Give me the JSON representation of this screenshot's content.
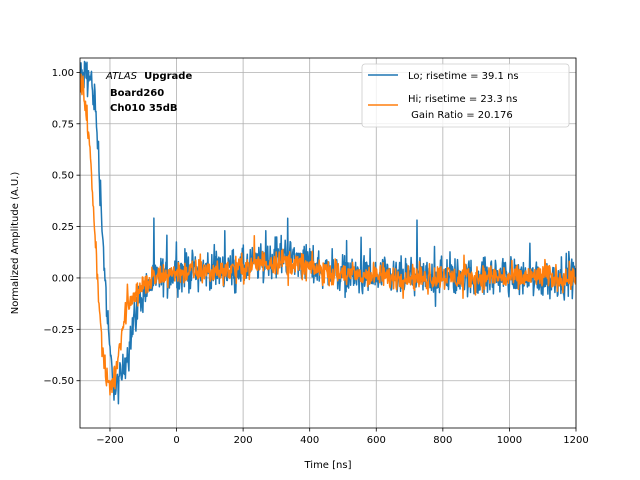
{
  "chart_data": {
    "type": "line",
    "xlabel": "Time [ns]",
    "ylabel": "Normalized Amplitude (A.U.)",
    "xlim": [
      -290,
      1200
    ],
    "ylim": [
      -0.73,
      1.07
    ],
    "grid": true,
    "legend_position": "upper right",
    "x_ticks": [
      -200,
      0,
      200,
      400,
      600,
      800,
      1000,
      1200
    ],
    "x_tick_labels": [
      "−200",
      "0",
      "200",
      "400",
      "600",
      "800",
      "1000",
      "1200"
    ],
    "y_ticks": [
      -0.5,
      -0.25,
      0.0,
      0.25,
      0.5,
      0.75,
      1.0
    ],
    "y_tick_labels": [
      "−0.50",
      "−0.25",
      "0.00",
      "0.25",
      "0.50",
      "0.75",
      "1.00"
    ],
    "annotation": {
      "atlas": "ATLAS",
      "upgrade": "Upgrade",
      "board": "Board260",
      "channel": "Ch010 35dB"
    },
    "legend": {
      "lo": "Lo; risetime = 39.1 ns",
      "hi": "Hi; risetime = 23.3 ns",
      "gain": " Gain Ratio = 20.176"
    },
    "series": [
      {
        "name": "Lo; risetime = 39.1 ns",
        "color": "#1f77b4",
        "noise": 0.07,
        "x": [
          -290,
          -275,
          -265,
          -255,
          -245,
          -235,
          -225,
          -215,
          -205,
          -195,
          -185,
          -175,
          -165,
          -155,
          -145,
          -135,
          -125,
          -110,
          -90,
          -70,
          -50,
          -30,
          0,
          50,
          100,
          150,
          200,
          250,
          300,
          330,
          350,
          400,
          450,
          500,
          550,
          600,
          650,
          700,
          750,
          800,
          850,
          900,
          950,
          1000,
          1050,
          1100,
          1150,
          1200
        ],
        "y": [
          0.97,
          0.99,
          0.98,
          0.95,
          0.85,
          0.62,
          0.3,
          0.0,
          -0.28,
          -0.45,
          -0.52,
          -0.53,
          -0.48,
          -0.42,
          -0.34,
          -0.26,
          -0.18,
          -0.1,
          -0.05,
          -0.02,
          0.0,
          0.02,
          0.03,
          0.04,
          0.04,
          0.04,
          0.05,
          0.07,
          0.1,
          0.12,
          0.1,
          0.07,
          0.04,
          0.02,
          0.01,
          0.0,
          0.0,
          0.0,
          0.0,
          0.01,
          0.0,
          0.0,
          0.01,
          0.01,
          0.0,
          0.0,
          0.01,
          0.0
        ]
      },
      {
        "name": "Hi; risetime = 23.3 ns",
        "color": "#ff7f0e",
        "noise": 0.045,
        "x": [
          -290,
          -280,
          -270,
          -260,
          -250,
          -240,
          -230,
          -220,
          -210,
          -200,
          -190,
          -180,
          -170,
          -160,
          -150,
          -140,
          -130,
          -115,
          -100,
          -80,
          -60,
          -40,
          -20,
          0,
          50,
          100,
          150,
          200,
          250,
          300,
          330,
          350,
          400,
          450,
          500,
          550,
          600,
          650,
          700,
          750,
          800,
          850,
          900,
          950,
          1000,
          1050,
          1100,
          1150,
          1200
        ],
        "y": [
          0.95,
          0.92,
          0.8,
          0.6,
          0.35,
          0.08,
          -0.2,
          -0.4,
          -0.5,
          -0.53,
          -0.5,
          -0.42,
          -0.32,
          -0.22,
          -0.15,
          -0.1,
          -0.08,
          -0.06,
          -0.04,
          -0.02,
          0.0,
          0.01,
          0.02,
          0.03,
          0.03,
          0.03,
          0.04,
          0.05,
          0.07,
          0.09,
          0.08,
          0.07,
          0.05,
          0.03,
          0.02,
          0.01,
          0.01,
          0.0,
          0.01,
          0.0,
          0.01,
          0.0,
          0.0,
          0.01,
          0.0,
          0.0,
          0.01,
          0.0,
          0.01
        ]
      }
    ]
  }
}
